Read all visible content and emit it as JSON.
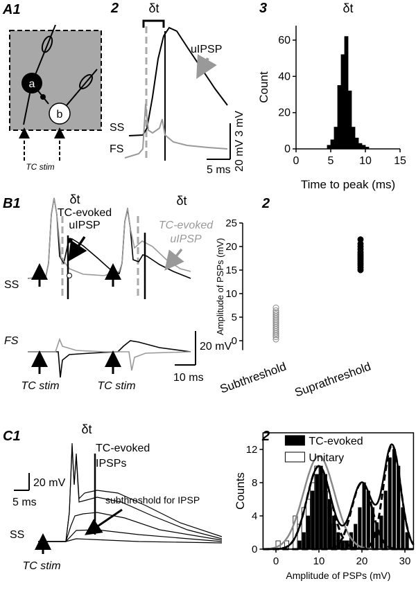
{
  "panel_labels": [
    "A1",
    "2",
    "3",
    "B1",
    "2",
    "C1",
    "2"
  ],
  "diagram": {
    "cell_a": "a",
    "cell_b": "b",
    "stim": "TC stim"
  },
  "traces": {
    "A2": {
      "delta": "δt",
      "uipsp": "uIPSP",
      "ss": "SS",
      "fs": "FS",
      "scale_v": "20 mV 3 mV",
      "scale_t": "5 ms"
    },
    "B1": {
      "delta_1": "δt",
      "delta_2": "δt",
      "evoked": [
        "TC-evoked",
        "uIPSP"
      ],
      "evoked_gray": [
        "TC-evoked",
        "uIPSP"
      ],
      "ss": "SS",
      "fs": "FS",
      "scale_v": "20 mV",
      "scale_t": "10 ms",
      "stim_1": "TC stim",
      "stim_2": "TC stim"
    },
    "C1": {
      "delta": "δt",
      "evoked": [
        "TC-evoked",
        "IPSPs"
      ],
      "sub": "subthreshold for IPSP",
      "scale_v": "20 mV",
      "scale_t": "5 ms",
      "ss": "SS",
      "stim": "TC stim"
    }
  },
  "chart_data": [
    {
      "type": "histogram",
      "title": "δt",
      "xlabel": "Time to peak (ms)",
      "ylabel": "Count",
      "bins": [
        4.5,
        5,
        5.5,
        6,
        6.5,
        7,
        7.5,
        8,
        8.5,
        9,
        9.5,
        10,
        10.5
      ],
      "values": [
        2,
        5,
        12,
        35,
        52,
        62,
        32,
        12,
        6,
        3,
        2,
        1
      ],
      "color": "#000000",
      "xlim": [
        0,
        15
      ],
      "xticks": [
        0,
        5,
        10,
        15
      ],
      "ylim": [
        0,
        68
      ],
      "yticks": [
        0,
        20,
        40,
        60
      ]
    },
    {
      "type": "scatter",
      "ylabel": "Amplitude of PSPs (mV)",
      "categories": [
        "Subthreshold",
        "Suprathreshold"
      ],
      "series": [
        {
          "color": "#888888",
          "filled": false,
          "values": [
            0.3,
            0.8,
            1.2,
            1.6,
            2,
            2.4,
            2.8,
            3.2,
            3.6,
            4,
            4.4,
            4.8,
            5.2,
            5.6,
            6,
            6.4,
            7
          ]
        },
        {
          "color": "#000000",
          "filled": true,
          "values": [
            15,
            15.5,
            16,
            16.4,
            16.8,
            17.2,
            17.6,
            18,
            18.4,
            18.8,
            19.4,
            20,
            20.6,
            21.5
          ]
        }
      ],
      "ylim": [
        -2,
        25
      ],
      "yticks": [
        0,
        5,
        10,
        15,
        20,
        25
      ]
    },
    {
      "type": "histogram",
      "xlabel": "Amplitude of PSPs (mV)",
      "ylabel": "Counts",
      "frame": true,
      "bins": [
        0,
        1,
        2,
        3,
        4,
        5,
        6,
        7,
        8,
        9,
        10,
        11,
        12,
        13,
        14,
        15,
        16,
        17,
        18,
        19,
        20,
        21,
        22,
        23,
        24,
        25,
        26,
        27,
        28,
        29,
        30,
        31,
        32
      ],
      "series": [
        {
          "name": "TC-evoked",
          "color": "#000000",
          "values": [
            0,
            0,
            0,
            0,
            0,
            1,
            2,
            4,
            7,
            9,
            10,
            9,
            6,
            4,
            2,
            1,
            1,
            2,
            3,
            5,
            8,
            7,
            5,
            3,
            4,
            7,
            11,
            12,
            10,
            5,
            2,
            0
          ]
        },
        {
          "name": "Unitary",
          "color": "#ffffff",
          "values": [
            1,
            0,
            1,
            0,
            4,
            3,
            5,
            6,
            8,
            10,
            9,
            7,
            5,
            3,
            1,
            1,
            1,
            0,
            0,
            0,
            0,
            0,
            0,
            0,
            0,
            0,
            0,
            0,
            0,
            0,
            0,
            0
          ]
        }
      ],
      "fits": [
        {
          "color": "#888888",
          "components": [
            [
              11.2,
              10,
              3.6
            ]
          ]
        },
        {
          "color": "#000000",
          "components": [
            [
              10,
              10,
              2.8
            ],
            [
              8,
              20,
              2.4
            ],
            [
              12.5,
              27,
              2
            ]
          ],
          "dashed_components": true
        }
      ],
      "xlim": [
        -3,
        32
      ],
      "xticks": [
        0,
        10,
        20,
        30
      ],
      "ylim": [
        0,
        14
      ],
      "yticks": [
        0,
        4,
        8,
        12
      ]
    }
  ]
}
